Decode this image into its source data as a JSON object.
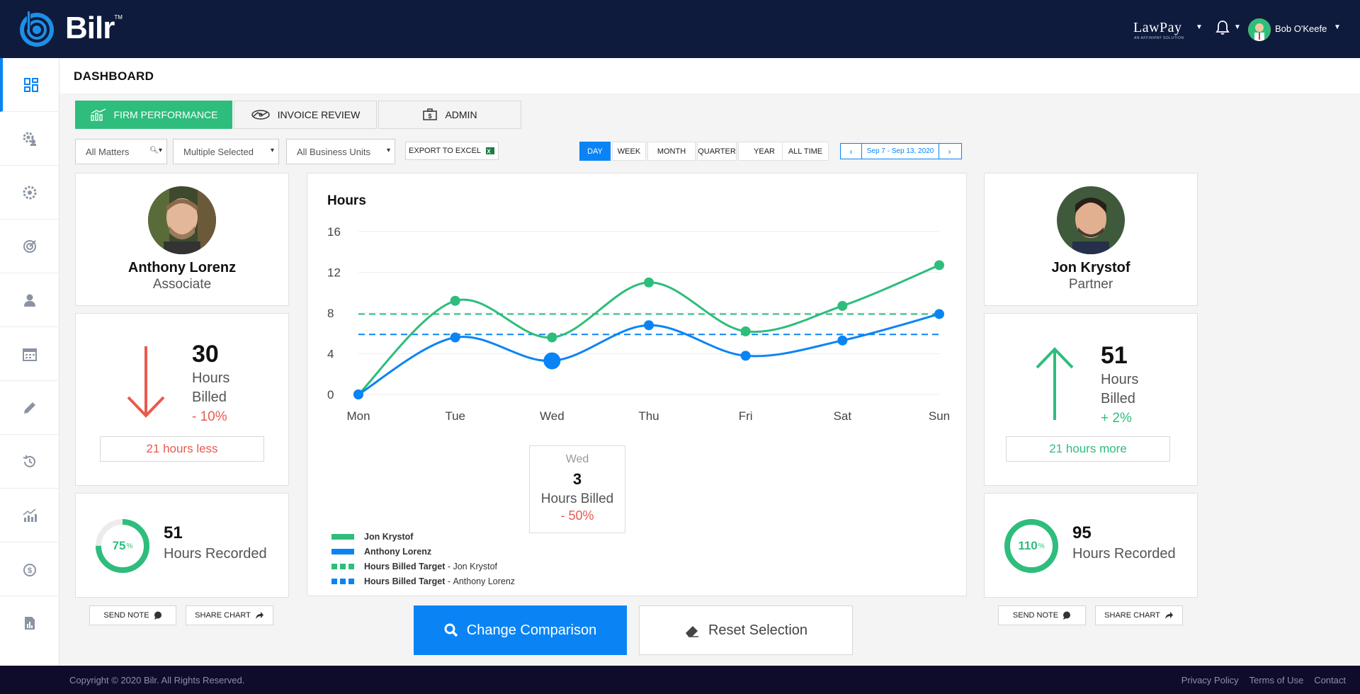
{
  "app": {
    "name": "Bilr",
    "tm": "TM"
  },
  "header": {
    "lawpay": "LawPay",
    "lawpay_sub": "AN AFFINIPAY SOLUTION",
    "user_name": "Bob O'Keefe"
  },
  "page": {
    "title": "DASHBOARD"
  },
  "tabs": [
    {
      "label": "FIRM PERFORMANCE",
      "active": true,
      "icon": "chart-icon"
    },
    {
      "label": "INVOICE REVIEW",
      "active": false,
      "icon": "handshake-money-icon"
    },
    {
      "label": "ADMIN",
      "active": false,
      "icon": "briefcase-money-icon"
    }
  ],
  "filters": {
    "matters": "All Matters",
    "selected": "Multiple Selected",
    "business_units": "All Business Units",
    "export": "EXPORT TO EXCEL"
  },
  "periods": [
    "DAY",
    "WEEK",
    "MONTH",
    "QUARTER",
    "YEAR",
    "ALL TIME"
  ],
  "active_period": "DAY",
  "date_range": "Sep 7 - Sep 13, 2020",
  "left_person": {
    "name": "Anthony Lorenz",
    "role": "Associate",
    "hours_billed": "30",
    "billed_label_1": "Hours",
    "billed_label_2": "Billed",
    "change": "- 10%",
    "diff": "21 hours less",
    "ring_pct": "75",
    "pct_sign": "%",
    "ring_fraction": 0.75,
    "hours_recorded": "51",
    "recorded_label": "Hours Recorded"
  },
  "right_person": {
    "name": "Jon Krystof",
    "role": "Partner",
    "hours_billed": "51",
    "billed_label_1": "Hours",
    "billed_label_2": "Billed",
    "change": "+ 2%",
    "diff": "21 hours more",
    "ring_pct": "110",
    "pct_sign": "%",
    "ring_fraction": 1.0,
    "hours_recorded": "95",
    "recorded_label": "Hours Recorded"
  },
  "actions": {
    "send_note": "SEND NOTE",
    "share_chart": "SHARE CHART"
  },
  "buttons": {
    "change_comparison": "Change Comparison",
    "reset_selection": "Reset Selection"
  },
  "tooltip": {
    "day": "Wed",
    "value": "3",
    "label": "Hours Billed",
    "change": "- 50%"
  },
  "chart_data": {
    "type": "line",
    "title": "Hours",
    "categories": [
      "Mon",
      "Tue",
      "Wed",
      "Thu",
      "Fri",
      "Sat",
      "Sun"
    ],
    "ylim": [
      0,
      16
    ],
    "yticks": [
      0,
      4,
      8,
      12,
      16
    ],
    "series": [
      {
        "name": "Jon Krystof",
        "color": "#2ebd7c",
        "values": [
          0,
          9.2,
          5.6,
          11,
          6.2,
          8.7,
          12.7
        ]
      },
      {
        "name": "Anthony Lorenz",
        "color": "#0a84f5",
        "values": [
          0,
          5.6,
          3.3,
          6.8,
          3.8,
          5.3,
          7.9
        ]
      }
    ],
    "targets": [
      {
        "name": "Hours Billed Target",
        "person": "Jon Krystof",
        "color": "#2ebd7c",
        "value": 7.9
      },
      {
        "name": "Hours Billed Target",
        "person": "Anthony Lorenz",
        "color": "#0a84f5",
        "value": 5.9
      }
    ],
    "grid": true,
    "legend": "bottom-left"
  },
  "legend_sep": " - ",
  "footer": {
    "copyright": "Copyright © 2020 Bilr. All Rights Reserved.",
    "links": [
      "Privacy Policy",
      "Terms of Use",
      "Contact"
    ]
  }
}
